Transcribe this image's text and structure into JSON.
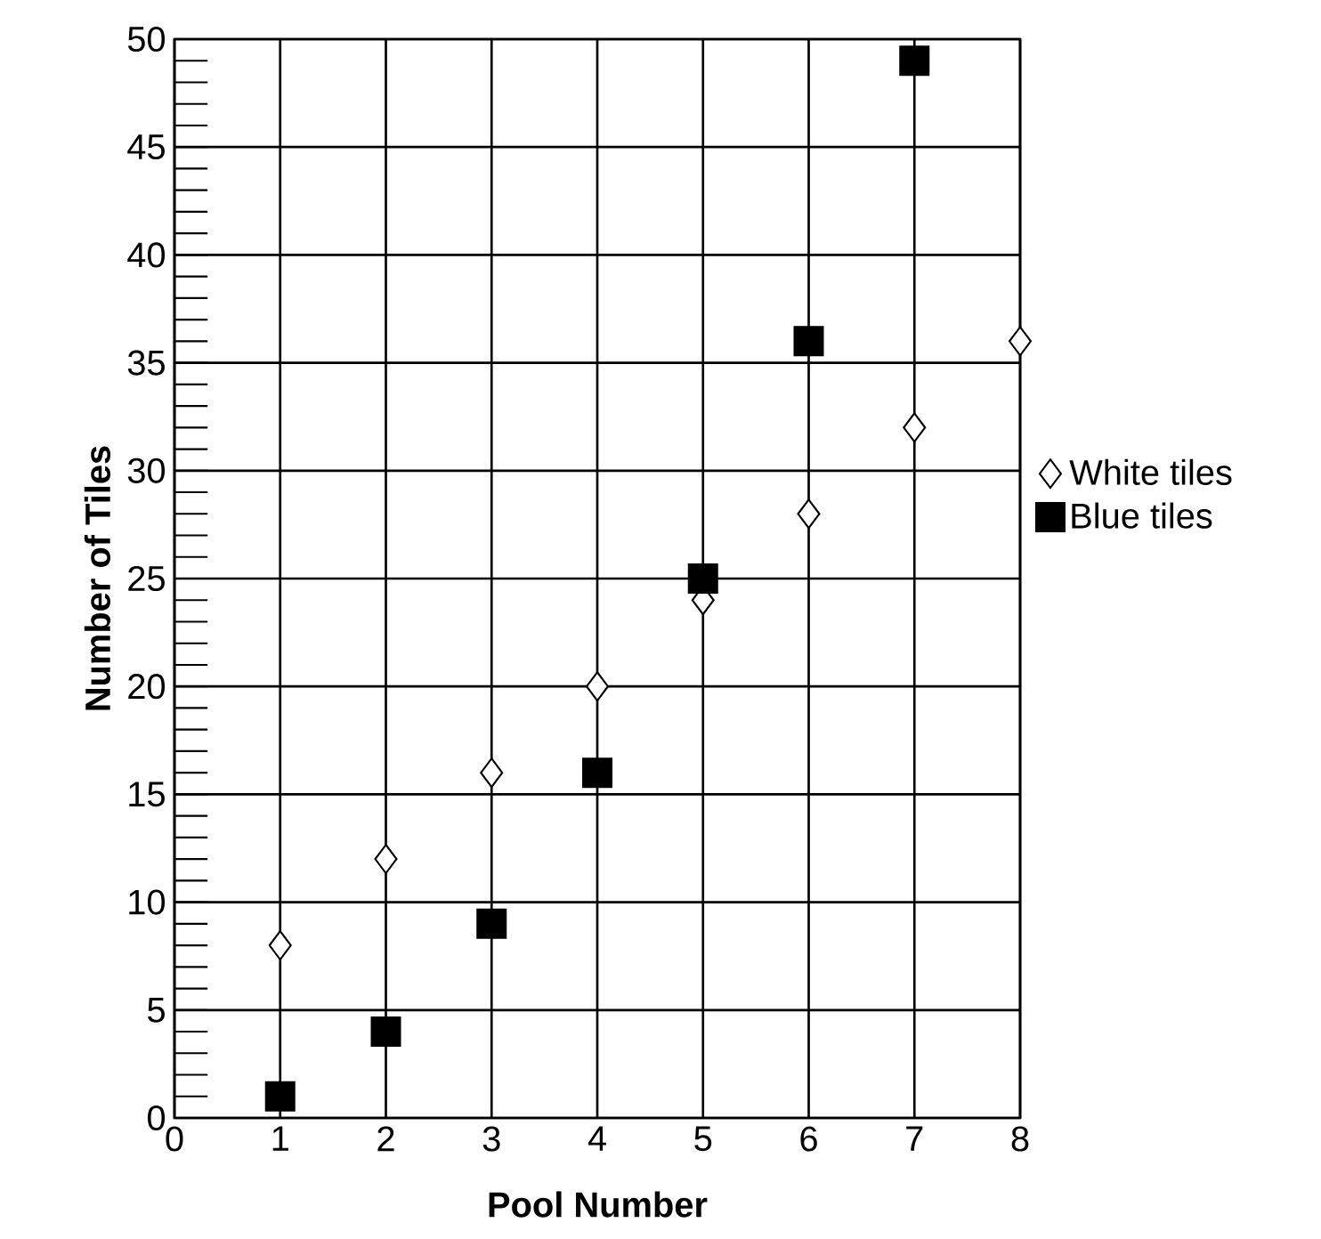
{
  "chart_data": {
    "type": "scatter",
    "xlabel": "Pool Number",
    "ylabel": "Number of Tiles",
    "series": [
      {
        "name": "White tiles",
        "color": "#ffffff",
        "marker": "diamond",
        "x": [
          1,
          2,
          3,
          4,
          5,
          6,
          7,
          8
        ],
        "values": [
          8,
          12,
          16,
          20,
          24,
          28,
          32,
          36
        ]
      },
      {
        "name": "Blue tiles",
        "color": "#000000",
        "marker": "square",
        "x": [
          1,
          2,
          3,
          4,
          5,
          6,
          7
        ],
        "values": [
          1,
          4,
          9,
          16,
          25,
          36,
          49
        ]
      }
    ],
    "xlim": [
      0,
      8
    ],
    "ylim": [
      0,
      50
    ],
    "xticks": [
      0,
      1,
      2,
      3,
      4,
      5,
      6,
      7,
      8
    ],
    "yticks": [
      0,
      5,
      10,
      15,
      20,
      25,
      30,
      35,
      40,
      45,
      50
    ],
    "grid": true,
    "legend": "right"
  }
}
